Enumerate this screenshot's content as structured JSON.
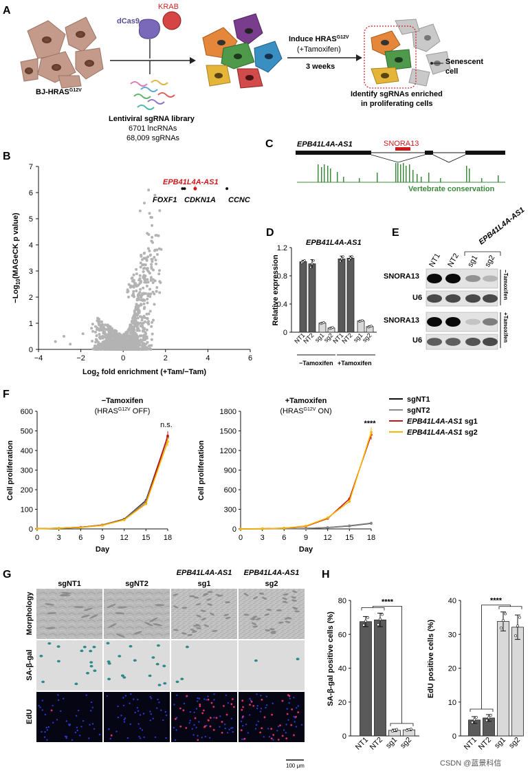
{
  "panels": {
    "A": "A",
    "B": "B",
    "C": "C",
    "D": "D",
    "E": "E",
    "F": "F",
    "G": "G",
    "H": "H"
  },
  "panel_a": {
    "dcas9": "dCas9",
    "krab": "KRAB",
    "cell_line": "BJ-HRAS",
    "cell_sup": "G12V",
    "library_title": "Lentiviral sgRNA library",
    "library_line2": "6701 lncRNAs",
    "library_line3": "68,009 sgRNAs",
    "induce_line1": "Induce HRAS",
    "induce_sup": "G12V",
    "induce_line2": "(+Tamoxifen)",
    "duration": "3 weeks",
    "senescent1": "Senescent",
    "senescent2": "cell",
    "identify1": "Identify sgRNAs enriched",
    "identify2": "in proliferating cells"
  },
  "panel_b_chart": {
    "type": "scatter",
    "ylabel_prefix": "−Log",
    "ylabel_sub": "10",
    "ylabel_rest": "(MAGeCK p value)",
    "xlabel_prefix": "Log",
    "xlabel_sub": "2",
    "xlabel_rest": " fold enrichment (+Tam/−Tam)",
    "xlim": [
      -4,
      6
    ],
    "ylim": [
      0,
      7
    ],
    "xticks": [
      "−4",
      "−2",
      "0",
      "2",
      "4",
      "6"
    ],
    "yticks": [
      "0",
      "1",
      "2",
      "3",
      "4",
      "5",
      "6",
      "7"
    ],
    "highlight": {
      "label": "EPB41L4A-AS1",
      "x": 3.4,
      "y": 6.15,
      "color": "#cc1a1a"
    },
    "labeled_points": [
      {
        "label": "FOXF1",
        "x": 2.9,
        "y": 6.15
      },
      {
        "label": "CDKN1A",
        "x": 2.8,
        "y": 6.15
      },
      {
        "label": "CCNC",
        "x": 4.9,
        "y": 6.15
      }
    ]
  },
  "panel_c": {
    "gene": "EPB41L4A-AS1",
    "snora": "SNORA13",
    "conservation": "Vertebrate conservation",
    "gene_color": "#111111",
    "snora_color": "#cc1a1a",
    "conservation_color": "#3b8a3b"
  },
  "panel_d_chart": {
    "type": "bar",
    "title": "EPB41L4A-AS1",
    "ylabel": "Relative expression",
    "ylim": [
      0,
      1.2
    ],
    "yticks": [
      "0",
      "0.4",
      "0.8",
      "1.2"
    ],
    "categories": [
      "NT1",
      "NT2",
      "sg1",
      "sg2",
      "NT1",
      "NT2",
      "sg1",
      "sg2"
    ],
    "values": [
      1.0,
      0.97,
      0.13,
      0.06,
      1.04,
      1.05,
      0.16,
      0.08
    ],
    "errors": [
      0.02,
      0.06,
      0.01,
      0.01,
      0.04,
      0.03,
      0.01,
      0.01
    ],
    "groups": [
      "−Tamoxifen",
      "+Tamoxifen"
    ],
    "colors": {
      "dark": "#5a5a5a",
      "light": "#d9d9d9"
    }
  },
  "panel_e": {
    "group_label": "EPB41L4A-AS1",
    "lanes": [
      "NT1",
      "NT2",
      "sg1",
      "sg2"
    ],
    "rows": [
      "SNORA13",
      "U6",
      "SNORA13",
      "U6"
    ],
    "conditions": [
      "−Tamoxifen",
      "+Tamoxifen"
    ]
  },
  "panel_f_left": {
    "type": "line",
    "title": "−Tamoxifen",
    "sub_prefix": "(HRAS",
    "sub_sup": "G12V",
    "sub_rest": " OFF)",
    "ylabel": "Cell proliferation",
    "xlabel": "Day",
    "xlim": [
      0,
      18
    ],
    "ylim": [
      0,
      600
    ],
    "xticks": [
      "0",
      "3",
      "6",
      "9",
      "12",
      "15",
      "18"
    ],
    "yticks": [
      "0",
      "100",
      "200",
      "300",
      "400",
      "500",
      "600"
    ],
    "annotation": "n.s.",
    "x": [
      0,
      3,
      6,
      9,
      12,
      15,
      18
    ],
    "series": [
      {
        "name": "sgNT1",
        "values": [
          1,
          3,
          8,
          20,
          50,
          145,
          470
        ],
        "color": "#111111"
      },
      {
        "name": "sgNT2",
        "values": [
          1,
          3,
          8,
          20,
          48,
          140,
          465
        ],
        "color": "#888888"
      },
      {
        "name": "EPB41L4A-AS1 sg1",
        "values": [
          1,
          3,
          8,
          19,
          47,
          130,
          475
        ],
        "color": "#c81414"
      },
      {
        "name": "EPB41L4A-AS1 sg2",
        "values": [
          1,
          3,
          7,
          18,
          46,
          128,
          445
        ],
        "color": "#f5b800"
      }
    ]
  },
  "panel_f_right": {
    "type": "line",
    "title": "+Tamoxifen",
    "sub_prefix": "(HRAS",
    "sub_sup": "G12V",
    "sub_rest": " ON)",
    "ylabel": "Cell proliferation",
    "xlabel": "Day",
    "xlim": [
      0,
      18
    ],
    "ylim": [
      0,
      1800
    ],
    "xticks": [
      "0",
      "3",
      "6",
      "9",
      "12",
      "15",
      "18"
    ],
    "yticks": [
      "0",
      "300",
      "600",
      "900",
      "1200",
      "1500",
      "1800"
    ],
    "annotation": "****",
    "x": [
      0,
      3,
      6,
      9,
      12,
      15,
      18
    ],
    "series": [
      {
        "name": "sgNT1",
        "values": [
          1,
          2,
          4,
          8,
          20,
          45,
          85
        ],
        "color": "#111111"
      },
      {
        "name": "sgNT2",
        "values": [
          1,
          2,
          4,
          8,
          22,
          50,
          90
        ],
        "color": "#888888"
      },
      {
        "name": "EPB41L4A-AS1 sg1",
        "values": [
          1,
          3,
          12,
          40,
          160,
          460,
          1440
        ],
        "color": "#c81414"
      },
      {
        "name": "EPB41L4A-AS1 sg2",
        "values": [
          1,
          3,
          12,
          45,
          170,
          420,
          1480
        ],
        "color": "#f5b800"
      }
    ]
  },
  "legend_f": [
    {
      "name": "sgNT1",
      "color": "#111111",
      "italic_part": "",
      "plain_part": "sgNT1"
    },
    {
      "name": "sgNT2",
      "color": "#888888",
      "italic_part": "",
      "plain_part": "sgNT2"
    },
    {
      "name": "EPB41L4A-AS1 sg1",
      "color": "#c81414",
      "italic_part": "EPB41L4A-AS1",
      "plain_part": " sg1"
    },
    {
      "name": "EPB41L4A-AS1 sg2",
      "color": "#f5b800",
      "italic_part": "EPB41L4A-AS1",
      "plain_part": " sg2"
    }
  ],
  "panel_g": {
    "columns": [
      "sgNT1",
      "sgNT2",
      "EPB41L4A-AS1",
      "EPB41L4A-AS1"
    ],
    "columns_sub": [
      "",
      "",
      "sg1",
      "sg2"
    ],
    "rows": [
      "Morphology",
      "SA-β-gal",
      "EdU"
    ],
    "scale": "100 μm"
  },
  "panel_h_left": {
    "type": "bar",
    "ylabel": "SA-β-gal positive cells (%)",
    "ylim": [
      0,
      80
    ],
    "yticks": [
      "0",
      "20",
      "40",
      "60",
      "80"
    ],
    "categories": [
      "NT1",
      "NT2",
      "sg1",
      "sg2"
    ],
    "values": [
      67.5,
      68.5,
      3.3,
      3.6
    ],
    "errors": [
      3.0,
      4.0,
      0.7,
      0.5
    ],
    "annotation": "****"
  },
  "panel_h_right": {
    "type": "bar",
    "ylabel": "EdU positive cells (%)",
    "ylim": [
      0,
      40
    ],
    "yticks": [
      "0",
      "10",
      "20",
      "30",
      "40"
    ],
    "categories": [
      "NT1",
      "NT2",
      "sg1",
      "sg2"
    ],
    "values": [
      4.7,
      5.3,
      33.8,
      32.1
    ],
    "errors": [
      1.0,
      1.0,
      2.8,
      3.6
    ],
    "annotation": "****"
  },
  "watermark": "CSDN @蓝景科信"
}
